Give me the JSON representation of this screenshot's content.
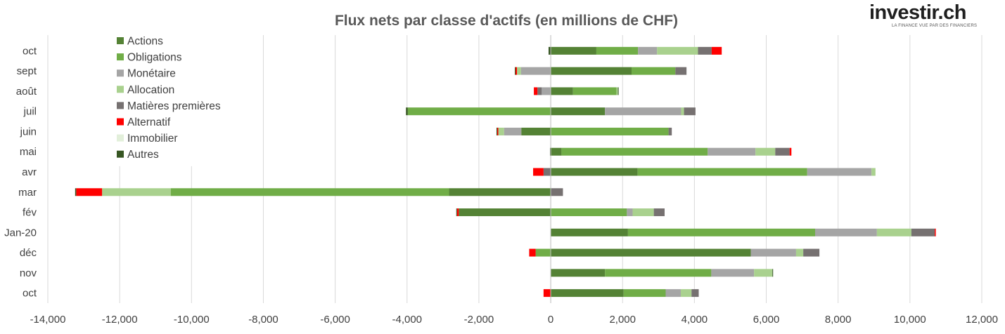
{
  "colors": {
    "Actions": "#548235",
    "Obligations": "#70ad47",
    "Monétaire": "#a5a5a5",
    "Allocation": "#a9d18e",
    "Matières premières": "#767171",
    "Alternatif": "#ff0000",
    "Immobilier": "#e2efda",
    "Autres": "#375623",
    "grid": "#d9d9d9",
    "text": "#404040",
    "title": "#595959"
  },
  "logo": {
    "name": "investir.ch",
    "tagline": "LA FINANCE VUE PAR DES FINANCIERS"
  },
  "chart_data": {
    "type": "bar",
    "orientation": "horizontal",
    "stacked": true,
    "title": "Flux nets par classe d'actifs (en millions de CHF)",
    "xlabel": "",
    "ylabel": "",
    "xlim": [
      -14000,
      12000
    ],
    "xticks": [
      -14000,
      -12000,
      -10000,
      -8000,
      -6000,
      -4000,
      -2000,
      0,
      2000,
      4000,
      6000,
      8000,
      10000,
      12000
    ],
    "xtick_labels": [
      "-14,000",
      "-12,000",
      "-10,000",
      "-8,000",
      "-6,000",
      "-4,000",
      "-2,000",
      "0",
      "2,000",
      "4,000",
      "6,000",
      "8,000",
      "10,000",
      "12,000"
    ],
    "grid": "vertical",
    "legend_position": "top-left",
    "categories": [
      "oct",
      "sept",
      "août",
      "juil",
      "juin",
      "mai",
      "avr",
      "mar",
      "fév",
      "Jan-20",
      "déc",
      "nov",
      "oct"
    ],
    "series": [
      {
        "name": "Actions",
        "values": [
          1270,
          2250,
          620,
          1510,
          -820,
          300,
          2420,
          -2830,
          -2560,
          2150,
          5570,
          1510,
          2030
        ]
      },
      {
        "name": "Obligations",
        "values": [
          1160,
          1220,
          1210,
          -3980,
          3280,
          4070,
          4720,
          -7750,
          2120,
          5210,
          -420,
          2960,
          1170
        ]
      },
      {
        "name": "Monétaire",
        "values": [
          530,
          -830,
          -250,
          2120,
          -480,
          1330,
          1790,
          0,
          160,
          1720,
          1260,
          1190,
          420
        ]
      },
      {
        "name": "Allocation",
        "values": [
          1140,
          -110,
          40,
          80,
          -160,
          550,
          110,
          -1910,
          590,
          960,
          200,
          510,
          300
        ]
      },
      {
        "name": "Matières premières",
        "values": [
          380,
          310,
          -120,
          320,
          90,
          400,
          -200,
          340,
          300,
          650,
          450,
          0,
          200
        ]
      },
      {
        "name": "Alternatif",
        "values": [
          280,
          -40,
          -100,
          0,
          -30,
          50,
          -290,
          -720,
          -50,
          30,
          -180,
          0,
          -200
        ]
      },
      {
        "name": "Immobilier",
        "values": [
          0,
          0,
          0,
          0,
          0,
          0,
          0,
          0,
          0,
          0,
          0,
          0,
          0
        ]
      },
      {
        "name": "Autres",
        "values": [
          -60,
          -20,
          20,
          -50,
          -20,
          -20,
          0,
          -30,
          -20,
          0,
          0,
          20,
          0
        ]
      }
    ]
  }
}
